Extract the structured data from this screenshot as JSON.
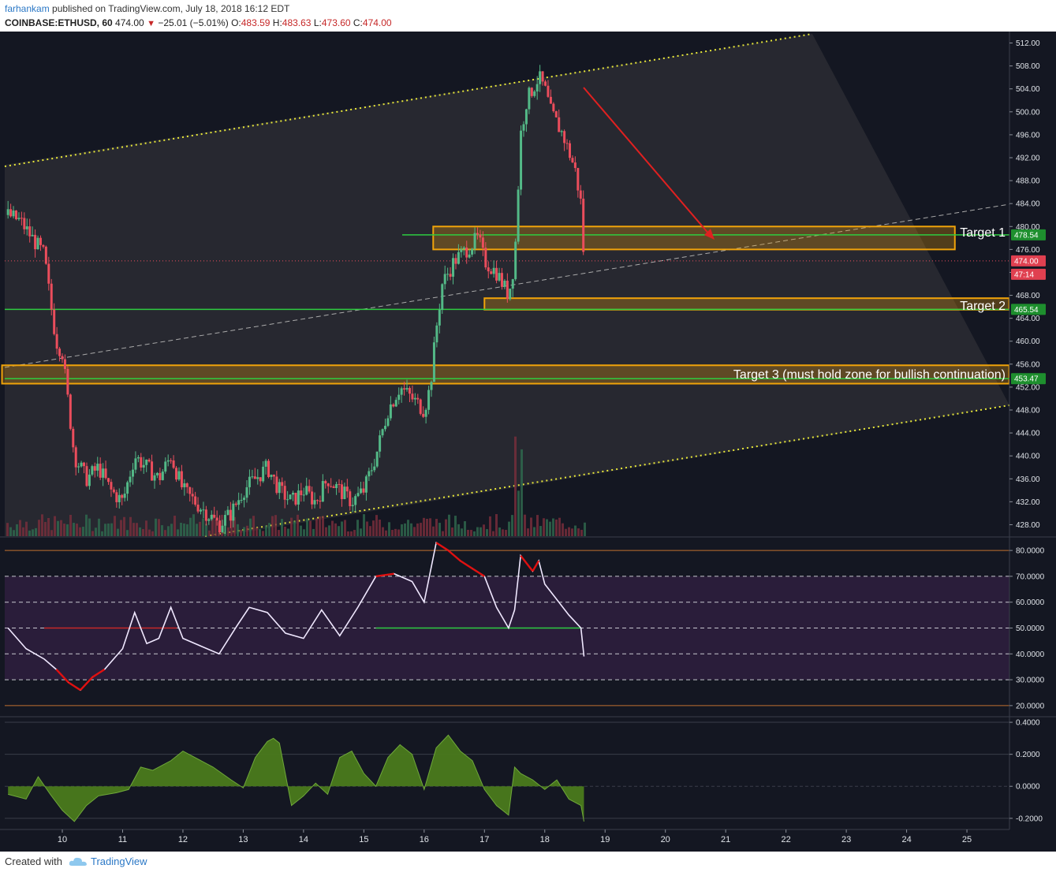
{
  "header": {
    "author": "farhankam",
    "published": "published on TradingView.com, July 18, 2018 16:12 EDT",
    "symbol": "COINBASE:ETHUSD, 60",
    "last": "474.00",
    "change": "−25.01 (−5.01%)",
    "o_label": "O:",
    "o_value": "483.59",
    "h_label": "H:",
    "h_value": "483.63",
    "l_label": "L:",
    "l_value": "473.60",
    "c_label": "C:",
    "c_value": "474.00"
  },
  "footer": {
    "created_with": "Created with",
    "brand": "TradingView"
  },
  "colors": {
    "background": "#141722",
    "up": "#53b987",
    "down": "#eb4d5c",
    "zone": "#f0a30a",
    "green_line": "#2ecc40",
    "trend_dotted": "#e8e83a",
    "rsi_band": "#2a1d3a",
    "osc_fill": "#4a7a1c",
    "arrow": "#e02020"
  },
  "annotations": {
    "target1": "Target 1",
    "target2": "Target 2",
    "target3": "Target 3 (must hold zone for bullish continuation)"
  },
  "price_labels": {
    "level1": "478.54",
    "current": "474.00",
    "countdown": "47:14",
    "level2": "465.54",
    "level3": "453.47"
  },
  "chart_data": [
    {
      "type": "candlestick",
      "title": "COINBASE:ETHUSD, 60",
      "x_categories": [
        "10",
        "11",
        "12",
        "13",
        "14",
        "15",
        "16",
        "17",
        "18",
        "19",
        "20",
        "21",
        "22",
        "23",
        "24",
        "25"
      ],
      "y_ticks": [
        "512.00",
        "508.00",
        "504.00",
        "500.00",
        "496.00",
        "492.00",
        "488.00",
        "484.00",
        "480.00",
        "476.00",
        "472.00",
        "468.00",
        "464.00",
        "460.00",
        "456.00",
        "452.00",
        "448.00",
        "444.00",
        "440.00",
        "436.00",
        "432.00",
        "428.00"
      ],
      "ylim": [
        426,
        514
      ],
      "close_path": [
        [
          9.1,
          482
        ],
        [
          9.3,
          481
        ],
        [
          9.5,
          478
        ],
        [
          9.7,
          475
        ],
        [
          9.8,
          467
        ],
        [
          9.9,
          460
        ],
        [
          10.0,
          458
        ],
        [
          10.1,
          449
        ],
        [
          10.2,
          440
        ],
        [
          10.4,
          436
        ],
        [
          10.6,
          438
        ],
        [
          10.8,
          434
        ],
        [
          11.0,
          432
        ],
        [
          11.2,
          440
        ],
        [
          11.4,
          438
        ],
        [
          11.6,
          436
        ],
        [
          11.8,
          440
        ],
        [
          12.0,
          434
        ],
        [
          12.2,
          432
        ],
        [
          12.4,
          430
        ],
        [
          12.6,
          428
        ],
        [
          12.8,
          430
        ],
        [
          13.0,
          434
        ],
        [
          13.2,
          436
        ],
        [
          13.4,
          438
        ],
        [
          13.6,
          434
        ],
        [
          13.8,
          432
        ],
        [
          14.0,
          434
        ],
        [
          14.2,
          432
        ],
        [
          14.4,
          436
        ],
        [
          14.6,
          434
        ],
        [
          14.8,
          432
        ],
        [
          15.0,
          434
        ],
        [
          15.2,
          440
        ],
        [
          15.4,
          448
        ],
        [
          15.6,
          452
        ],
        [
          15.8,
          450
        ],
        [
          16.0,
          448
        ],
        [
          16.1,
          452
        ],
        [
          16.2,
          462
        ],
        [
          16.3,
          470
        ],
        [
          16.5,
          474
        ],
        [
          16.7,
          476
        ],
        [
          16.9,
          478
        ],
        [
          17.0,
          474
        ],
        [
          17.2,
          472
        ],
        [
          17.4,
          468
        ],
        [
          17.5,
          474
        ],
        [
          17.6,
          496
        ],
        [
          17.7,
          502
        ],
        [
          17.8,
          504
        ],
        [
          17.9,
          506
        ],
        [
          18.0,
          504
        ],
        [
          18.1,
          500
        ],
        [
          18.3,
          496
        ],
        [
          18.5,
          490
        ],
        [
          18.6,
          484
        ],
        [
          18.65,
          474
        ]
      ],
      "price_levels": [
        478.54,
        465.54,
        453.47
      ],
      "current_price": 474.0,
      "zones": [
        {
          "name": "Target 1",
          "low": 476,
          "high": 480,
          "x_from": 16.15,
          "x_to": 24.8
        },
        {
          "name": "Target 2",
          "low": 465.5,
          "high": 467.5,
          "x_from": 17.0,
          "x_to": 25.7
        },
        {
          "name": "Target 3",
          "low": 452.6,
          "high": 455.8,
          "x_from": 9.0,
          "x_to": 25.7
        }
      ]
    },
    {
      "type": "line",
      "title": "RSI",
      "y_ticks": [
        "80.0000",
        "70.0000",
        "60.0000",
        "50.0000",
        "40.0000",
        "30.0000",
        "20.0000"
      ],
      "ylim": [
        16,
        84
      ],
      "x": [
        9.1,
        9.4,
        9.7,
        9.9,
        10.1,
        10.3,
        10.5,
        10.7,
        11.0,
        11.2,
        11.4,
        11.6,
        11.8,
        12.0,
        12.3,
        12.6,
        12.9,
        13.1,
        13.4,
        13.7,
        14.0,
        14.3,
        14.6,
        14.9,
        15.2,
        15.5,
        15.8,
        16.0,
        16.2,
        16.4,
        16.6,
        16.8,
        17.0,
        17.2,
        17.4,
        17.5,
        17.6,
        17.8,
        17.9,
        18.0,
        18.2,
        18.4,
        18.6,
        18.65
      ],
      "values": [
        50,
        42,
        38,
        34,
        29,
        26,
        31,
        34,
        42,
        56,
        44,
        46,
        58,
        46,
        43,
        40,
        51,
        58,
        56,
        48,
        46,
        57,
        47,
        58,
        70,
        71,
        68,
        60,
        83,
        80,
        76,
        73,
        70,
        58,
        50,
        57,
        78,
        72,
        76,
        67,
        61,
        55,
        50,
        39
      ]
    },
    {
      "type": "area",
      "title": "Oscillator",
      "y_ticks": [
        "0.4000",
        "0.2000",
        "0.0000",
        "-0.2000"
      ],
      "ylim": [
        -0.26,
        0.42
      ],
      "x": [
        9.1,
        9.4,
        9.6,
        9.8,
        10.0,
        10.2,
        10.4,
        10.6,
        10.9,
        11.1,
        11.3,
        11.5,
        11.8,
        12.0,
        12.3,
        12.5,
        12.8,
        13.0,
        13.2,
        13.4,
        13.5,
        13.6,
        13.8,
        14.0,
        14.2,
        14.4,
        14.6,
        14.8,
        15.0,
        15.2,
        15.4,
        15.6,
        15.8,
        16.0,
        16.2,
        16.4,
        16.6,
        16.8,
        17.0,
        17.2,
        17.4,
        17.5,
        17.6,
        17.8,
        18.0,
        18.2,
        18.4,
        18.6,
        18.65
      ],
      "values": [
        -0.05,
        -0.08,
        0.06,
        -0.05,
        -0.15,
        -0.22,
        -0.12,
        -0.06,
        -0.04,
        -0.02,
        0.12,
        0.1,
        0.16,
        0.22,
        0.16,
        0.12,
        0.04,
        -0.01,
        0.18,
        0.28,
        0.3,
        0.27,
        -0.12,
        -0.06,
        0.02,
        -0.05,
        0.18,
        0.22,
        0.08,
        0.0,
        0.18,
        0.26,
        0.2,
        -0.02,
        0.24,
        0.32,
        0.22,
        0.16,
        -0.02,
        -0.12,
        -0.18,
        0.12,
        0.08,
        0.04,
        -0.02,
        0.04,
        -0.08,
        -0.12,
        -0.22
      ]
    }
  ]
}
